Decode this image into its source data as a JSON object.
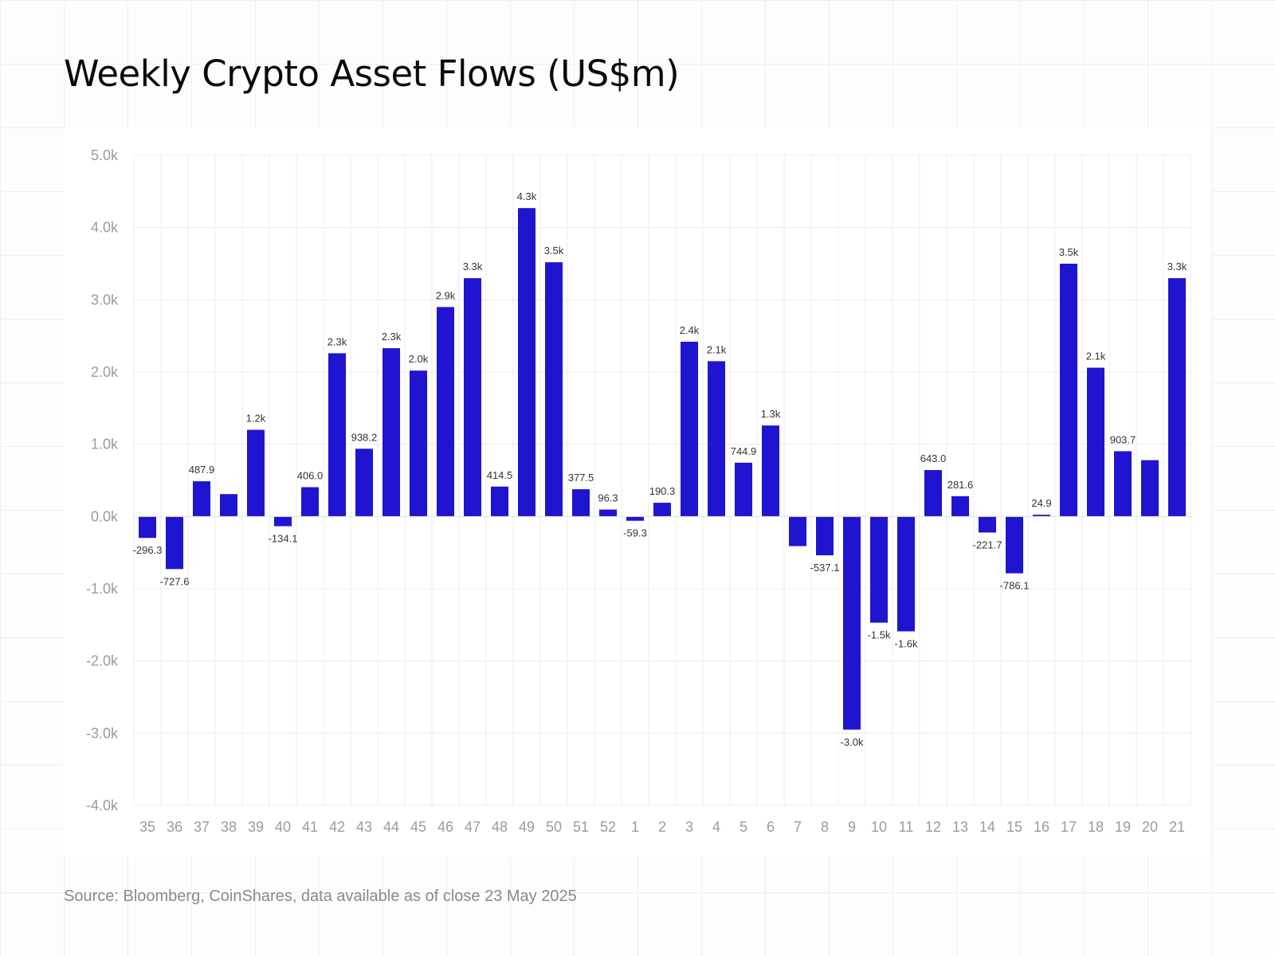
{
  "chart_data": {
    "type": "bar",
    "title": "Weekly Crypto Asset Flows (US$m)",
    "xlabel": "",
    "ylabel": "",
    "categories": [
      "35",
      "36",
      "37",
      "38",
      "39",
      "40",
      "41",
      "42",
      "43",
      "44",
      "45",
      "46",
      "47",
      "48",
      "49",
      "50",
      "51",
      "52",
      "1",
      "2",
      "3",
      "4",
      "5",
      "6",
      "7",
      "8",
      "9",
      "10",
      "11",
      "12",
      "13",
      "14",
      "15",
      "16",
      "17",
      "18",
      "19",
      "20",
      "21"
    ],
    "values": [
      -296.3,
      -727.6,
      487.9,
      310,
      1200,
      -134.1,
      406.0,
      2260,
      938.2,
      2330,
      2020,
      2900,
      3300,
      414.5,
      4270,
      3520,
      377.5,
      96.3,
      -59.3,
      190.3,
      2420,
      2150,
      744.9,
      1260,
      -410,
      -537.1,
      -2950,
      -1470,
      -1590,
      643.0,
      281.6,
      -221.7,
      -786.1,
      24.9,
      3500,
      2060,
      903.7,
      780,
      3300
    ],
    "value_labels": [
      "-296.3",
      "-727.6",
      "487.9",
      "",
      "1.2k",
      "-134.1",
      "406.0",
      "2.3k",
      "938.2",
      "2.3k",
      "2.0k",
      "2.9k",
      "3.3k",
      "414.5",
      "4.3k",
      "3.5k",
      "377.5",
      "96.3",
      "-59.3",
      "190.3",
      "2.4k",
      "2.1k",
      "744.9",
      "1.3k",
      "",
      "-537.1",
      "-3.0k",
      "-1.5k",
      "-1.6k",
      "643.0",
      "281.6",
      "-221.7",
      "-786.1",
      "24.9",
      "3.5k",
      "2.1k",
      "903.7",
      "",
      "3.3k"
    ],
    "yticks": [
      5000,
      4000,
      3000,
      2000,
      1000,
      0,
      -1000,
      -2000,
      -3000,
      -4000
    ],
    "ytick_labels": [
      "5.0k",
      "4.0k",
      "3.0k",
      "2.0k",
      "1.0k",
      "0.0k",
      "-1.0k",
      "-2.0k",
      "-3.0k",
      "-4.0k"
    ],
    "ylim": [
      -4000,
      5000
    ],
    "grid": true,
    "bar_color": "#1f14d0"
  },
  "source": "Source: Bloomberg, CoinShares, data available as of close 23 May 2025"
}
